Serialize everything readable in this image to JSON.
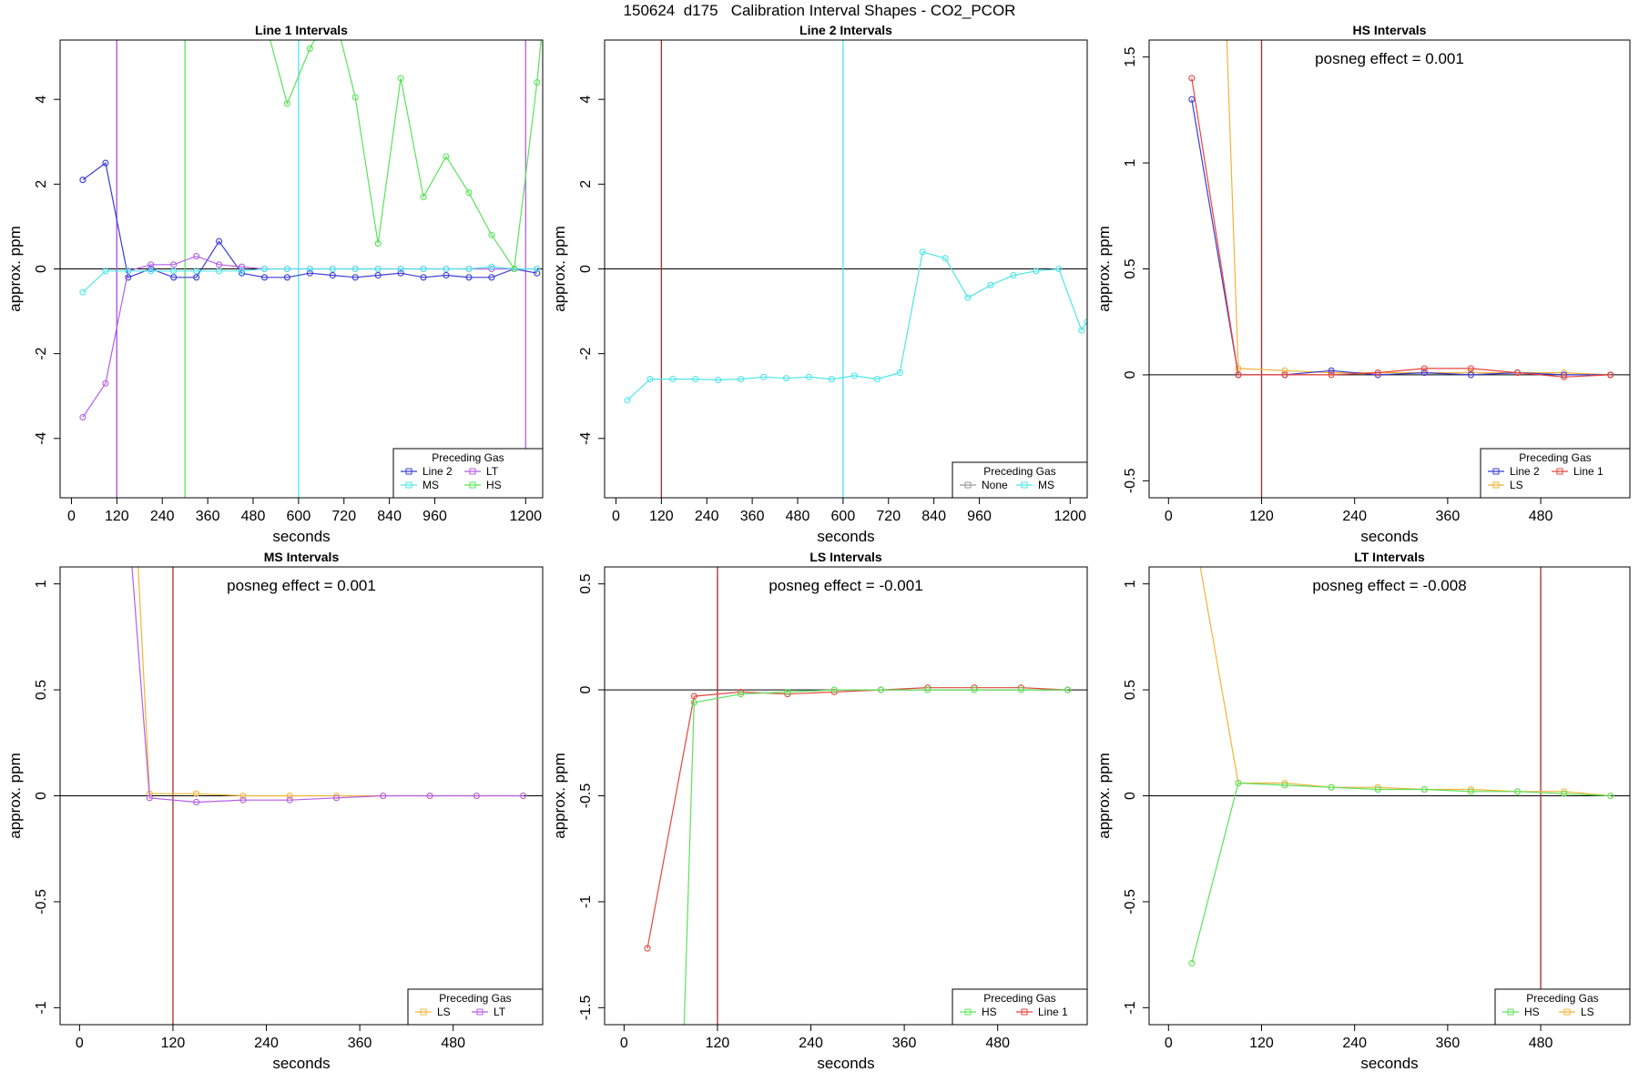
{
  "page": {
    "title": "150624  d175   Calibration Interval Shapes - CO2_PCOR"
  },
  "colors": {
    "Line 2": "#3b3bd8",
    "LT": "#b45ee8",
    "MS": "#4ee6ea",
    "HS": "#5ae35a",
    "None": "#999999",
    "LS": "#f2b437",
    "Line 1": "#e8453c",
    "vline": "#a52a2a"
  },
  "chart_data": [
    {
      "type": "line",
      "title": "Line 1 Intervals",
      "xlabel": "seconds",
      "ylabel": "approx. ppm",
      "xlim": [
        -30,
        1245
      ],
      "ylim": [
        -5.4,
        5.4
      ],
      "xticks": [
        0,
        120,
        240,
        360,
        480,
        600,
        720,
        840,
        960,
        1200
      ],
      "yticks": [
        -4,
        -2,
        0,
        2,
        4
      ],
      "hline": 0,
      "vlines": [
        {
          "x": 120,
          "color": "Line 2"
        },
        {
          "x": 120,
          "color": "LT"
        },
        {
          "x": 300,
          "color": "HS"
        },
        {
          "x": 600,
          "color": "MS"
        },
        {
          "x": 1200,
          "color": "LT"
        }
      ],
      "legend": {
        "title": "Preceding Gas",
        "position": "bottom-right",
        "entries": [
          "Line 2",
          "LT",
          "MS",
          "HS"
        ],
        "columns": 2
      },
      "series": [
        {
          "name": "Line 2",
          "x": [
            30,
            90,
            150,
            210,
            270,
            330,
            390,
            450,
            510,
            570,
            630,
            690,
            750,
            810,
            870,
            930,
            990,
            1050,
            1110,
            1170,
            1230
          ],
          "y": [
            2.1,
            2.5,
            -0.2,
            0.0,
            -0.2,
            -0.2,
            0.65,
            -0.1,
            -0.2,
            -0.2,
            -0.1,
            -0.15,
            -0.2,
            -0.15,
            -0.1,
            -0.2,
            -0.15,
            -0.2,
            -0.2,
            0.0,
            -0.1
          ]
        },
        {
          "name": "LT",
          "x": [
            30,
            90,
            150,
            210,
            270,
            330,
            390,
            450,
            510,
            570,
            630,
            690,
            750,
            810,
            870,
            930,
            990,
            1050,
            1110,
            1170,
            1230
          ],
          "y": [
            -3.5,
            -2.7,
            -0.05,
            0.1,
            0.1,
            0.3,
            0.1,
            0.05,
            0.0,
            0.0,
            0.0,
            0.0,
            0.0,
            0.0,
            0.0,
            0.0,
            0.0,
            0.0,
            0.0,
            0.0,
            0.0
          ]
        },
        {
          "name": "MS",
          "x": [
            30,
            90,
            150,
            210,
            270,
            330,
            390,
            450,
            510,
            570,
            630,
            690,
            750,
            810,
            870,
            930,
            990,
            1050,
            1110,
            1170,
            1230
          ],
          "y": [
            -0.55,
            -0.05,
            -0.05,
            -0.05,
            -0.05,
            -0.05,
            -0.05,
            -0.05,
            0.0,
            0.0,
            0.0,
            0.0,
            0.0,
            0.0,
            0.0,
            0.0,
            0.0,
            0.0,
            0.05,
            0.0,
            0.0
          ]
        },
        {
          "name": "HS",
          "x": [
            510,
            570,
            630,
            690,
            750,
            810,
            870,
            930,
            990,
            1050,
            1110,
            1170,
            1230,
            1245
          ],
          "y": [
            5.9,
            3.9,
            5.2,
            6.2,
            4.05,
            0.6,
            4.5,
            1.7,
            2.65,
            1.8,
            0.8,
            0.0,
            4.4,
            5.8
          ]
        }
      ]
    },
    {
      "type": "line",
      "title": "Line 2 Intervals",
      "xlabel": "seconds",
      "ylabel": "approx. ppm",
      "xlim": [
        -30,
        1245
      ],
      "ylim": [
        -5.4,
        5.4
      ],
      "xticks": [
        0,
        120,
        240,
        360,
        480,
        600,
        720,
        840,
        960,
        1200
      ],
      "yticks": [
        -4,
        -2,
        0,
        2,
        4
      ],
      "hline": 0,
      "vlines": [
        {
          "x": 120,
          "color": "vline"
        },
        {
          "x": 600,
          "color": "MS"
        }
      ],
      "legend": {
        "title": "Preceding Gas",
        "position": "bottom-right",
        "entries": [
          "None",
          "MS"
        ],
        "columns": 2
      },
      "series": [
        {
          "name": "MS",
          "x": [
            30,
            90,
            150,
            210,
            270,
            330,
            390,
            450,
            510,
            570,
            630,
            690,
            750,
            810,
            870,
            930,
            990,
            1050,
            1110,
            1170,
            1230,
            1245
          ],
          "y": [
            -3.1,
            -2.6,
            -2.6,
            -2.6,
            -2.62,
            -2.6,
            -2.55,
            -2.58,
            -2.55,
            -2.6,
            -2.52,
            -2.6,
            -2.45,
            0.4,
            0.25,
            -0.68,
            -0.38,
            -0.15,
            -0.05,
            0.0,
            -1.45,
            -1.25
          ]
        }
      ]
    },
    {
      "type": "line",
      "title": "HS Intervals",
      "xlabel": "seconds",
      "ylabel": "approx. ppm",
      "xlim": [
        -25,
        595
      ],
      "ylim": [
        -0.58,
        1.58
      ],
      "xticks": [
        0,
        120,
        240,
        360,
        480
      ],
      "yticks": [
        -0.5,
        0.0,
        0.5,
        1.0,
        1.5
      ],
      "hline": 0,
      "vlines": [
        {
          "x": 120,
          "color": "vline"
        }
      ],
      "annotation": "posneg effect = 0.001",
      "legend": {
        "title": "Preceding Gas",
        "position": "bottom-right",
        "entries": [
          "Line 2",
          "Line 1",
          "LS"
        ],
        "columns": 2
      },
      "series": [
        {
          "name": "LS",
          "x": [
            75,
            90,
            150,
            210,
            270,
            330,
            390,
            450,
            510,
            570
          ],
          "y": [
            1.6,
            0.03,
            0.02,
            0.01,
            0.01,
            0.01,
            0.01,
            0.01,
            0.01,
            0.0
          ]
        },
        {
          "name": "Line 2",
          "x": [
            30,
            90,
            150,
            210,
            270,
            330,
            390,
            450,
            510,
            570
          ],
          "y": [
            1.3,
            0.0,
            0.0,
            0.02,
            0.0,
            0.01,
            0.0,
            0.01,
            0.0,
            0.0
          ]
        },
        {
          "name": "Line 1",
          "x": [
            30,
            90,
            150,
            210,
            270,
            330,
            390,
            450,
            510,
            570
          ],
          "y": [
            1.4,
            0.0,
            0.0,
            0.0,
            0.01,
            0.03,
            0.03,
            0.01,
            -0.01,
            0.0
          ]
        }
      ]
    },
    {
      "type": "line",
      "title": "MS Intervals",
      "xlabel": "seconds",
      "ylabel": "approx. ppm",
      "xlim": [
        -25,
        595
      ],
      "ylim": [
        -1.08,
        1.08
      ],
      "xticks": [
        0,
        120,
        240,
        360,
        480
      ],
      "yticks": [
        -1.0,
        -0.5,
        0.0,
        0.5,
        1.0
      ],
      "hline": 0,
      "vlines": [
        {
          "x": 120,
          "color": "vline"
        }
      ],
      "annotation": "posneg effect = 0.001",
      "legend": {
        "title": "Preceding Gas",
        "position": "bottom-right",
        "entries": [
          "LS",
          "LT"
        ],
        "columns": 2
      },
      "series": [
        {
          "name": "LS",
          "x": [
            75,
            90,
            150,
            210,
            270,
            330,
            390,
            450,
            510,
            570
          ],
          "y": [
            1.1,
            0.01,
            0.01,
            0.0,
            0.0,
            0.0,
            0.0,
            0.0,
            0.0,
            0.0
          ]
        },
        {
          "name": "LT",
          "x": [
            67,
            90,
            150,
            210,
            270,
            330,
            390,
            450,
            510,
            570
          ],
          "y": [
            1.1,
            -0.01,
            -0.03,
            -0.02,
            -0.02,
            -0.01,
            0.0,
            0.0,
            0.0,
            0.0
          ]
        }
      ]
    },
    {
      "type": "line",
      "title": "LS Intervals",
      "xlabel": "seconds",
      "ylabel": "approx. ppm",
      "xlim": [
        -25,
        595
      ],
      "ylim": [
        -1.58,
        0.58
      ],
      "xticks": [
        0,
        120,
        240,
        360,
        480
      ],
      "yticks": [
        -1.5,
        -1.0,
        -0.5,
        0.0,
        0.5
      ],
      "hline": 0,
      "vlines": [
        {
          "x": 120,
          "color": "vline"
        }
      ],
      "annotation": "posneg effect = -0.001",
      "legend": {
        "title": "Preceding Gas",
        "position": "bottom-right",
        "entries": [
          "HS",
          "Line 1"
        ],
        "columns": 2
      },
      "series": [
        {
          "name": "Line 1",
          "x": [
            30,
            90,
            150,
            210,
            270,
            330,
            390,
            450,
            510,
            570
          ],
          "y": [
            -1.22,
            -0.03,
            -0.01,
            -0.02,
            -0.01,
            0.0,
            0.01,
            0.01,
            0.01,
            0.0
          ]
        },
        {
          "name": "HS",
          "x": [
            77,
            90,
            150,
            210,
            270,
            330,
            390,
            450,
            510,
            570
          ],
          "y": [
            -1.6,
            -0.06,
            -0.02,
            -0.01,
            0.0,
            0.0,
            0.0,
            0.0,
            0.0,
            0.0
          ]
        }
      ]
    },
    {
      "type": "line",
      "title": "LT Intervals",
      "xlabel": "seconds",
      "ylabel": "approx. ppm",
      "xlim": [
        -25,
        595
      ],
      "ylim": [
        -1.08,
        1.08
      ],
      "xticks": [
        0,
        120,
        240,
        360,
        480
      ],
      "yticks": [
        -1.0,
        -0.5,
        0.0,
        0.5,
        1.0
      ],
      "hline": 0,
      "vlines": [
        {
          "x": 480,
          "color": "vline"
        }
      ],
      "annotation": "posneg effect = -0.008",
      "legend": {
        "title": "Preceding Gas",
        "position": "bottom-right",
        "entries": [
          "HS",
          "LS"
        ],
        "columns": 2
      },
      "series": [
        {
          "name": "LS",
          "x": [
            40,
            90,
            150,
            210,
            270,
            330,
            390,
            450,
            510,
            570
          ],
          "y": [
            1.1,
            0.06,
            0.06,
            0.04,
            0.04,
            0.03,
            0.03,
            0.02,
            0.02,
            0.0
          ]
        },
        {
          "name": "HS",
          "x": [
            30,
            90,
            150,
            210,
            270,
            330,
            390,
            450,
            510,
            570
          ],
          "y": [
            -0.79,
            0.06,
            0.05,
            0.04,
            0.03,
            0.03,
            0.02,
            0.02,
            0.01,
            0.0
          ]
        }
      ]
    }
  ]
}
